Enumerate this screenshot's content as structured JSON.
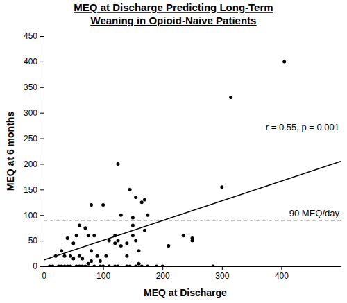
{
  "chart_data": {
    "type": "scatter",
    "title": [
      "MEQ at Discharge Predicting Long-Term",
      "Weaning in Opioid-Naive Patients"
    ],
    "x_label": "MEQ at Discharge",
    "y_label": "MEQ at 6 months",
    "color": "#000000",
    "marker": "circle",
    "x": [
      405,
      315,
      300,
      125,
      145,
      155,
      165,
      170,
      80,
      100,
      130,
      150,
      150,
      210,
      235,
      250,
      250,
      285,
      190,
      175,
      165,
      160,
      155,
      150,
      140,
      120,
      125,
      110,
      100,
      85,
      80,
      75,
      70,
      60,
      55,
      50,
      45,
      40,
      35,
      30,
      25,
      20,
      15,
      10,
      35,
      40,
      55,
      60,
      65,
      70,
      75,
      80,
      90,
      95,
      105,
      110,
      120,
      130,
      140,
      145,
      160,
      170,
      175,
      120,
      95,
      30,
      50,
      45,
      60,
      65,
      85,
      140,
      155,
      200,
      125
    ],
    "y": [
      400,
      330,
      155,
      200,
      150,
      135,
      125,
      130,
      120,
      120,
      100,
      95,
      80,
      40,
      60,
      55,
      50,
      0,
      0,
      0,
      0,
      30,
      50,
      60,
      45,
      45,
      50,
      50,
      0,
      0,
      30,
      60,
      75,
      80,
      60,
      45,
      20,
      55,
      20,
      0,
      0,
      20,
      0,
      0,
      0,
      0,
      0,
      0,
      0,
      0,
      5,
      10,
      20,
      0,
      20,
      0,
      60,
      40,
      20,
      0,
      5,
      70,
      100,
      0,
      10,
      30,
      15,
      0,
      20,
      15,
      60,
      0,
      0,
      0,
      0
    ],
    "trend": {
      "x": [
        0,
        500
      ],
      "y": [
        12,
        205
      ],
      "line_style": "solid"
    },
    "annotation": "r = 0.55, p = 0.001",
    "hline": {
      "y": 90,
      "label": "90 MEQ/day",
      "line_style": "dashed"
    },
    "xlim": [
      0,
      500
    ],
    "xticks": [
      0,
      100,
      200,
      300,
      400
    ],
    "ylim": [
      0,
      450
    ],
    "yticks": [
      0,
      50,
      100,
      150,
      200,
      250,
      300,
      350,
      400,
      450
    ],
    "grid": false
  }
}
